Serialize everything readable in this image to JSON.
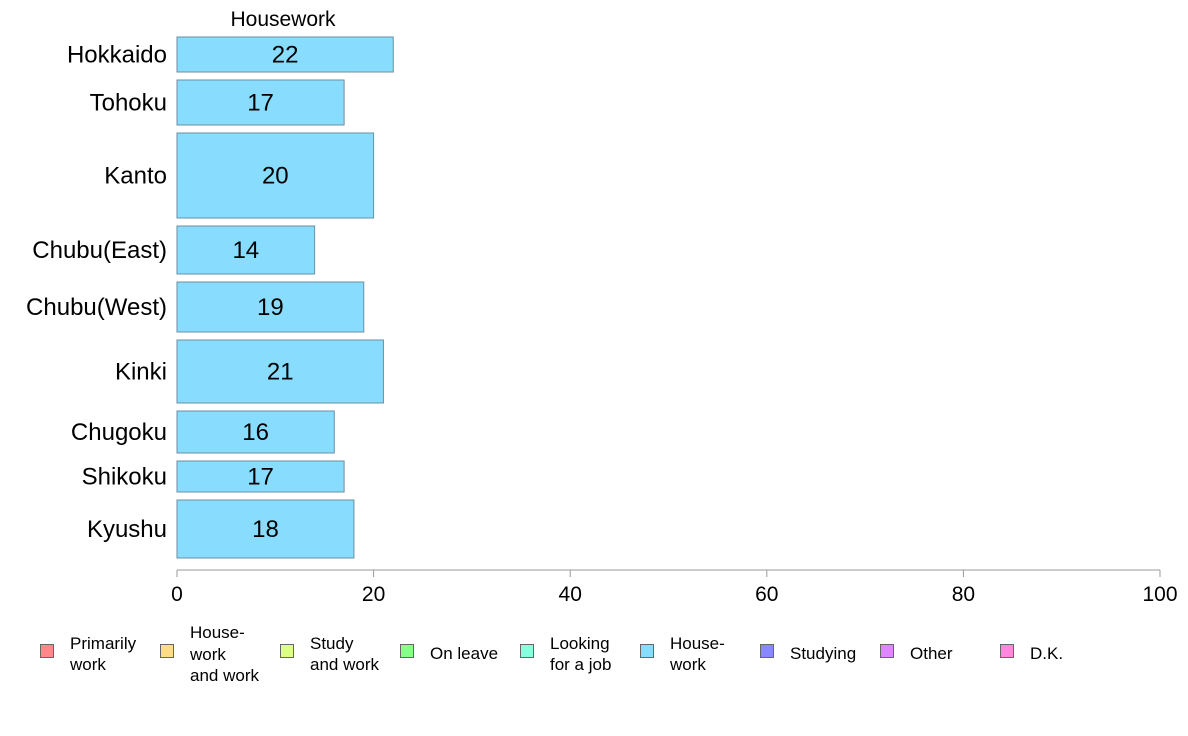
{
  "chart_data": {
    "type": "bar",
    "orientation": "horizontal",
    "title": "Housework",
    "categories": [
      "Hokkaido",
      "Tohoku",
      "Kanto",
      "Chubu(East)",
      "Chubu(West)",
      "Kinki",
      "Chugoku",
      "Shikoku",
      "Kyushu"
    ],
    "values": [
      22,
      17,
      20,
      14,
      19,
      21,
      16,
      17,
      18
    ],
    "xlim": [
      0,
      100
    ],
    "xticks": [
      "0",
      "20",
      "40",
      "60",
      "80",
      "100"
    ],
    "grid": false,
    "bar_color": "#88ddff",
    "legend_position": "bottom",
    "legend": [
      {
        "label": "Primarily\nwork",
        "color": "#ff8888"
      },
      {
        "label": "House-\nwork\nand work",
        "color": "#ffdd88"
      },
      {
        "label": "Study\nand work",
        "color": "#ddff88"
      },
      {
        "label": "On leave",
        "color": "#88ff88"
      },
      {
        "label": "Looking\nfor a job",
        "color": "#88ffdd"
      },
      {
        "label": "House-\nwork",
        "color": "#88ddff"
      },
      {
        "label": "Studying",
        "color": "#8888ff"
      },
      {
        "label": "Other",
        "color": "#dd88ff"
      },
      {
        "label": "D.K.",
        "color": "#ff88dd"
      }
    ]
  }
}
